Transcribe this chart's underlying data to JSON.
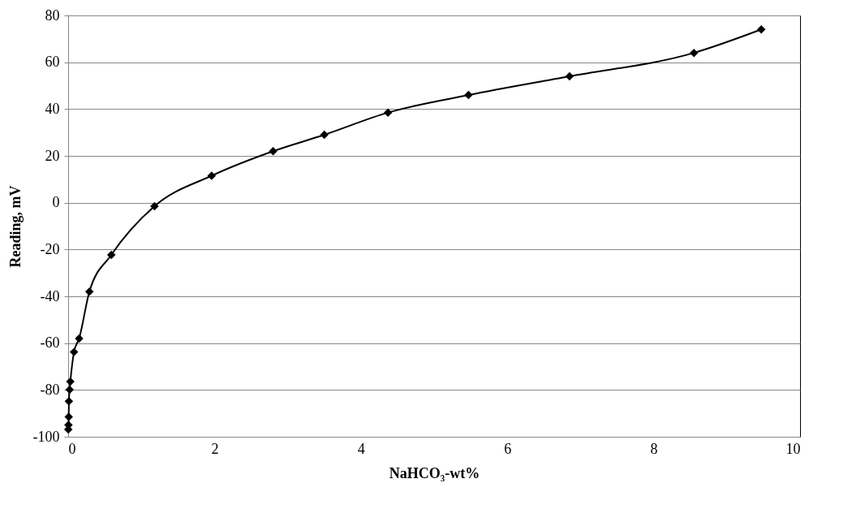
{
  "chart_data": {
    "type": "line",
    "xlabel": "NaHCO₃-wt%",
    "ylabel": "Reading, mV",
    "x": [
      0.002,
      0.004,
      0.008,
      0.01,
      0.02,
      0.03,
      0.08,
      0.15,
      0.29,
      0.59,
      1.18,
      1.96,
      2.8,
      3.5,
      4.37,
      5.47,
      6.85,
      8.55,
      9.47
    ],
    "series": [
      {
        "color": "#000000",
        "values": [
          -96.9,
          -95,
          -91.5,
          -84.8,
          -79.9,
          -76.4,
          -63.8,
          -58,
          -38,
          -22.3,
          -1.5,
          11.5,
          22,
          29,
          38.5,
          46,
          54,
          64,
          74
        ]
      }
    ],
    "xlim": [
      0,
      10
    ],
    "xticks": [
      0,
      2,
      4,
      6,
      8,
      10
    ],
    "ylim": [
      -100,
      80
    ],
    "yticks": [
      -100,
      -80,
      -60,
      -40,
      -20,
      0,
      20,
      40,
      60,
      80
    ],
    "grid": "y",
    "marker": "diamond",
    "line_style": "solid"
  }
}
